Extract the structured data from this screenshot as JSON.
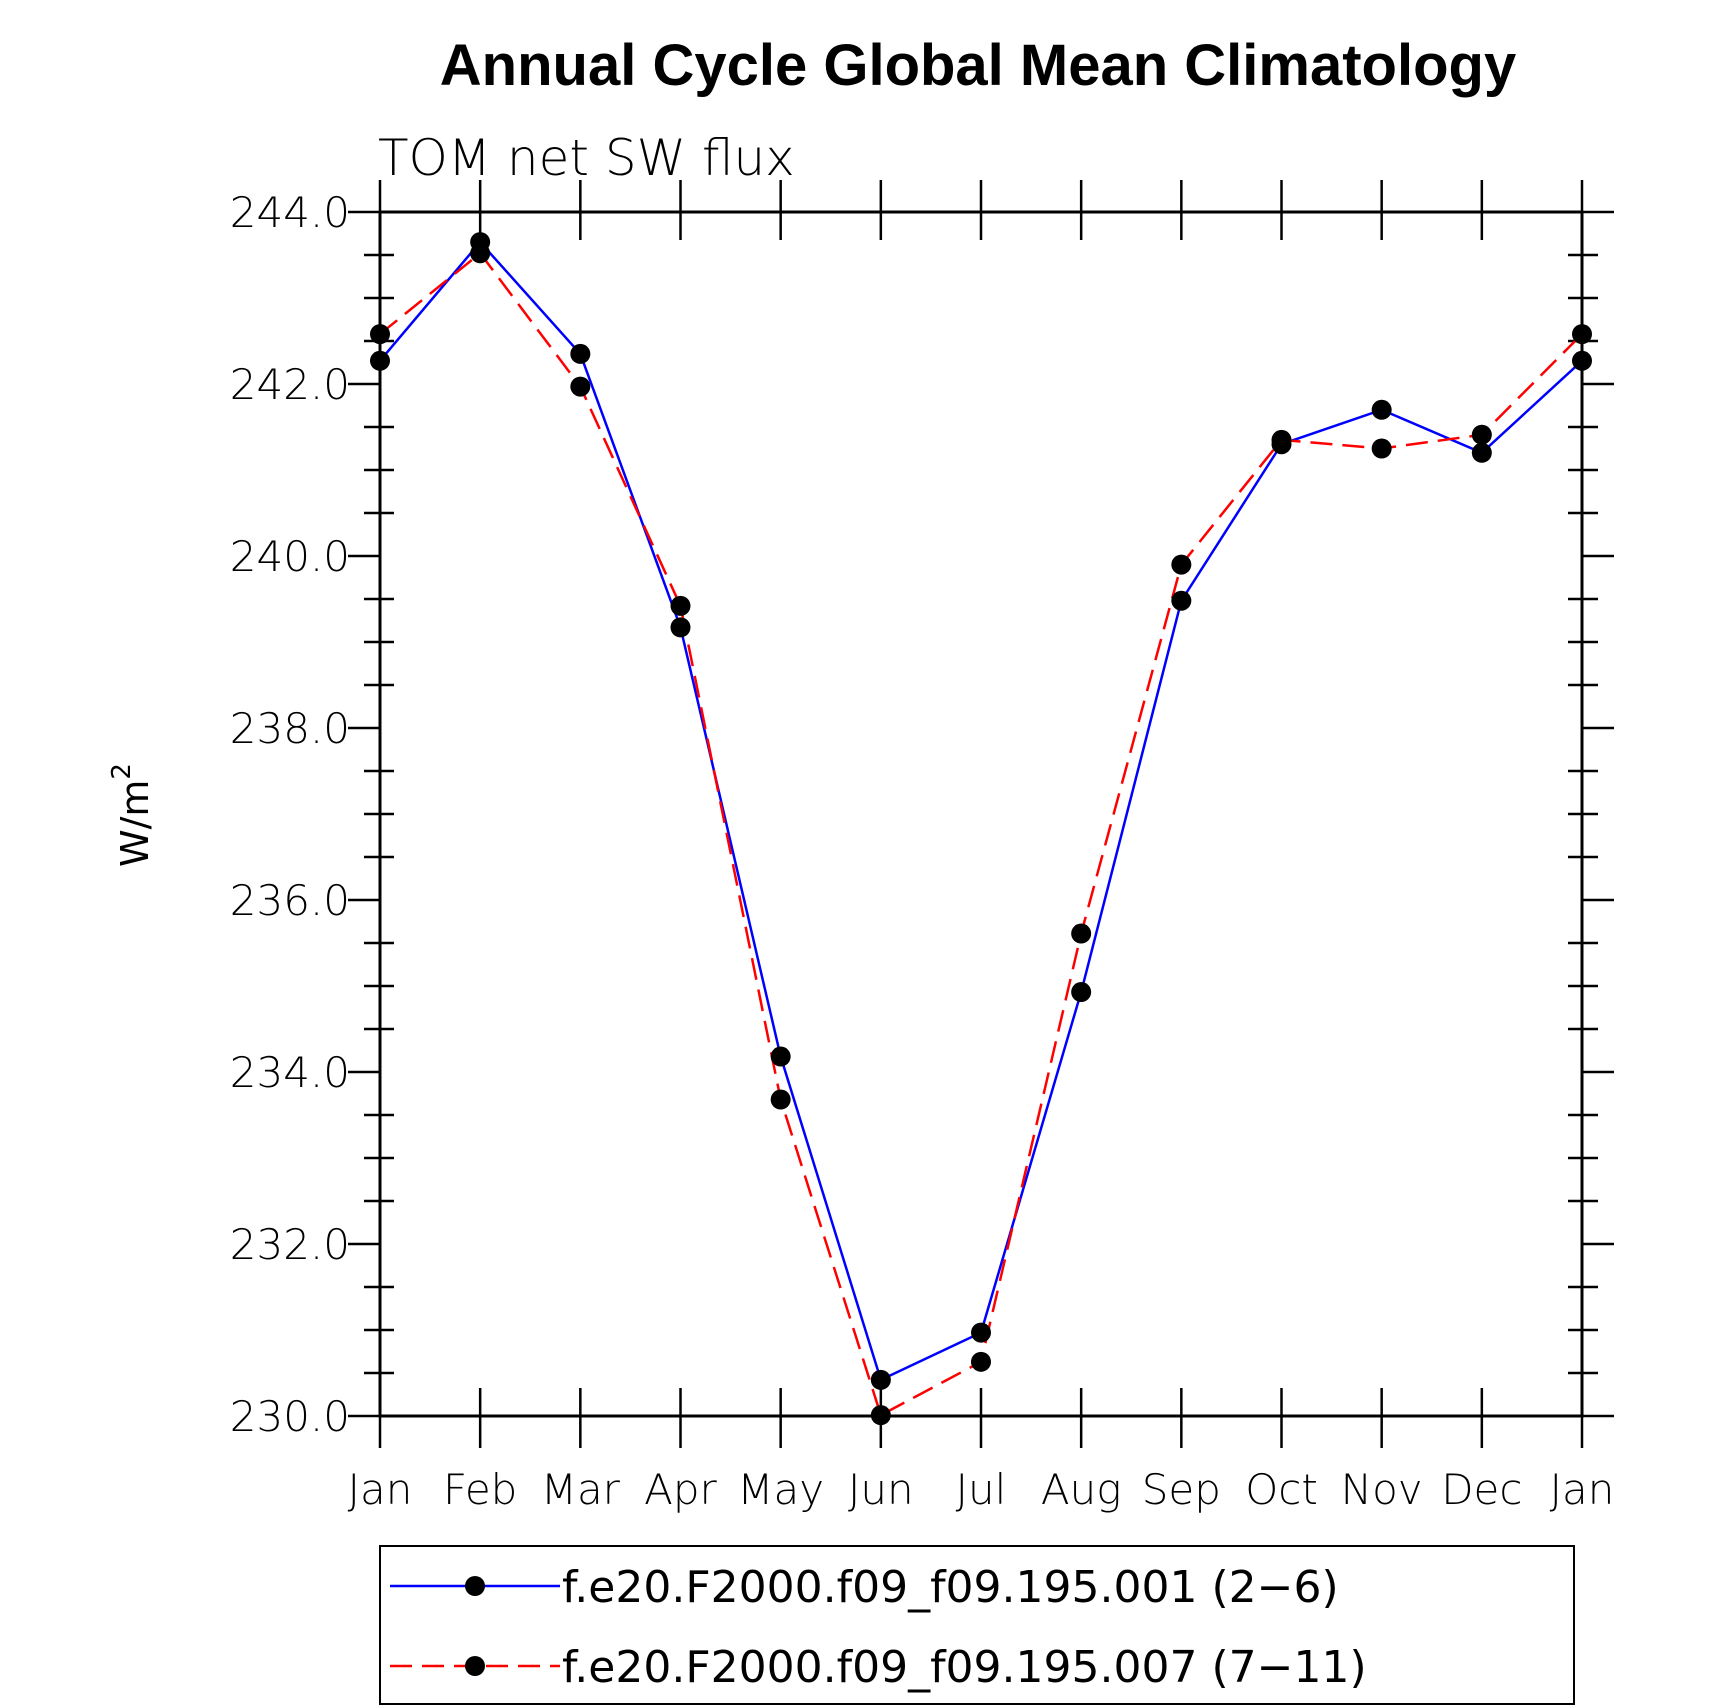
{
  "chart_data": {
    "type": "line",
    "title": "Annual Cycle Global Mean Climatology",
    "subtitle": "TOM net SW flux",
    "ylabel": "W/m",
    "ylabel_sup": "2",
    "ylim": [
      230.0,
      244.0
    ],
    "yticks": [
      "230.0",
      "232.0",
      "234.0",
      "236.0",
      "238.0",
      "240.0",
      "242.0",
      "244.0"
    ],
    "categories": [
      "Jan",
      "Feb",
      "Mar",
      "Apr",
      "May",
      "Jun",
      "Jul",
      "Aug",
      "Sep",
      "Oct",
      "Nov",
      "Dec",
      "Jan"
    ],
    "series": [
      {
        "name": "f.e20.F2000.f09_f09.195.001 (2−6)",
        "color": "#0000ff",
        "style": "solid",
        "values": [
          242.27,
          243.65,
          242.35,
          239.17,
          234.18,
          230.42,
          230.97,
          234.93,
          239.48,
          241.3,
          241.7,
          241.2,
          242.27
        ]
      },
      {
        "name": "f.e20.F2000.f09_f09.195.007 (7−11)",
        "color": "#ff0000",
        "style": "dashed",
        "values": [
          242.58,
          243.52,
          241.97,
          239.42,
          233.68,
          230.01,
          230.63,
          235.61,
          239.9,
          241.35,
          241.25,
          241.41,
          242.58
        ]
      }
    ],
    "legend": "bottom"
  }
}
